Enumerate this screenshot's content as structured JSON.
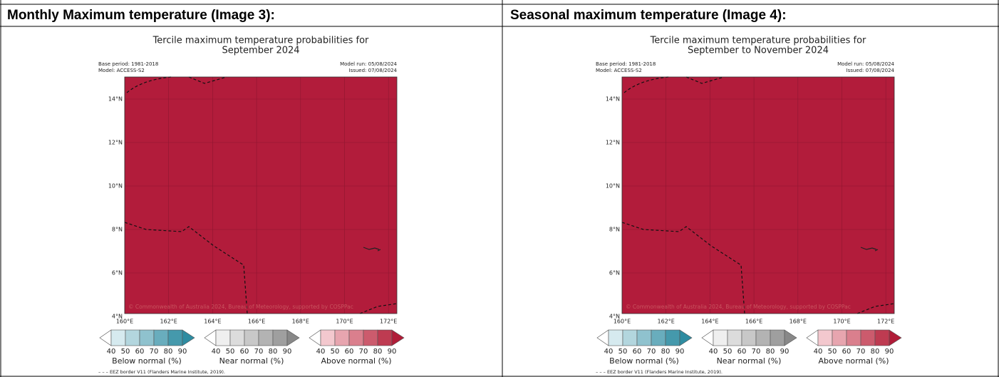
{
  "table": {
    "headers": [
      "Monthly Maximum temperature (Image 3):",
      "Seasonal maximum temperature (Image 4):"
    ],
    "panels": [
      {
        "title": [
          "Tercile maximum temperature probabilities for",
          "September 2024"
        ],
        "base_period": "Base period: 1981-2018",
        "model": "Model: ACCESS-S2",
        "model_run": "Model run: 05/08/2024",
        "issued": "Issued: 07/08/2024",
        "lat_labels": [
          "14°N",
          "12°N",
          "10°N",
          "8°N",
          "6°N",
          "4°N"
        ],
        "lon_labels": [
          "160°E",
          "162°E",
          "164°E",
          "166°E",
          "168°E",
          "170°E",
          "172°E"
        ],
        "copyright": "© Commonwealth of Australia 2024, Bureau of Meteorology, supported by COSPPac",
        "colorbars": [
          {
            "ticks": [
              "40",
              "50",
              "60",
              "70",
              "80",
              "90"
            ],
            "label": "Below normal (%)"
          },
          {
            "ticks": [
              "40",
              "50",
              "60",
              "70",
              "80",
              "90"
            ],
            "label": "Near normal (%)"
          },
          {
            "ticks": [
              "40",
              "50",
              "60",
              "70",
              "80",
              "90"
            ],
            "label": "Above normal (%)"
          }
        ],
        "footnote": "– – – EEZ border V11 (Flanders Marine Institute, 2019)."
      },
      {
        "title": [
          "Tercile maximum temperature probabilities for",
          "September to November 2024"
        ],
        "base_period": "Base period: 1981-2018",
        "model": "Model: ACCESS-S2",
        "model_run": "Model run: 05/08/2024",
        "issued": "Issued: 07/08/2024",
        "lat_labels": [
          "14°N",
          "12°N",
          "10°N",
          "8°N",
          "6°N",
          "4°N"
        ],
        "lon_labels": [
          "160°E",
          "162°E",
          "164°E",
          "166°E",
          "168°E",
          "170°E",
          "172°E"
        ],
        "copyright": "© Commonwealth of Australia 2024, Bureau of Meteorology, supported by COSPPac",
        "colorbars": [
          {
            "ticks": [
              "40",
              "50",
              "60",
              "70",
              "80",
              "90"
            ],
            "label": "Below normal (%)"
          },
          {
            "ticks": [
              "40",
              "50",
              "60",
              "70",
              "80",
              "90"
            ],
            "label": "Near normal (%)"
          },
          {
            "ticks": [
              "40",
              "50",
              "60",
              "70",
              "80",
              "90"
            ],
            "label": "Above normal (%)"
          }
        ],
        "footnote": "– – – EEZ border V11 (Flanders Marine Institute, 2019)."
      }
    ]
  }
}
